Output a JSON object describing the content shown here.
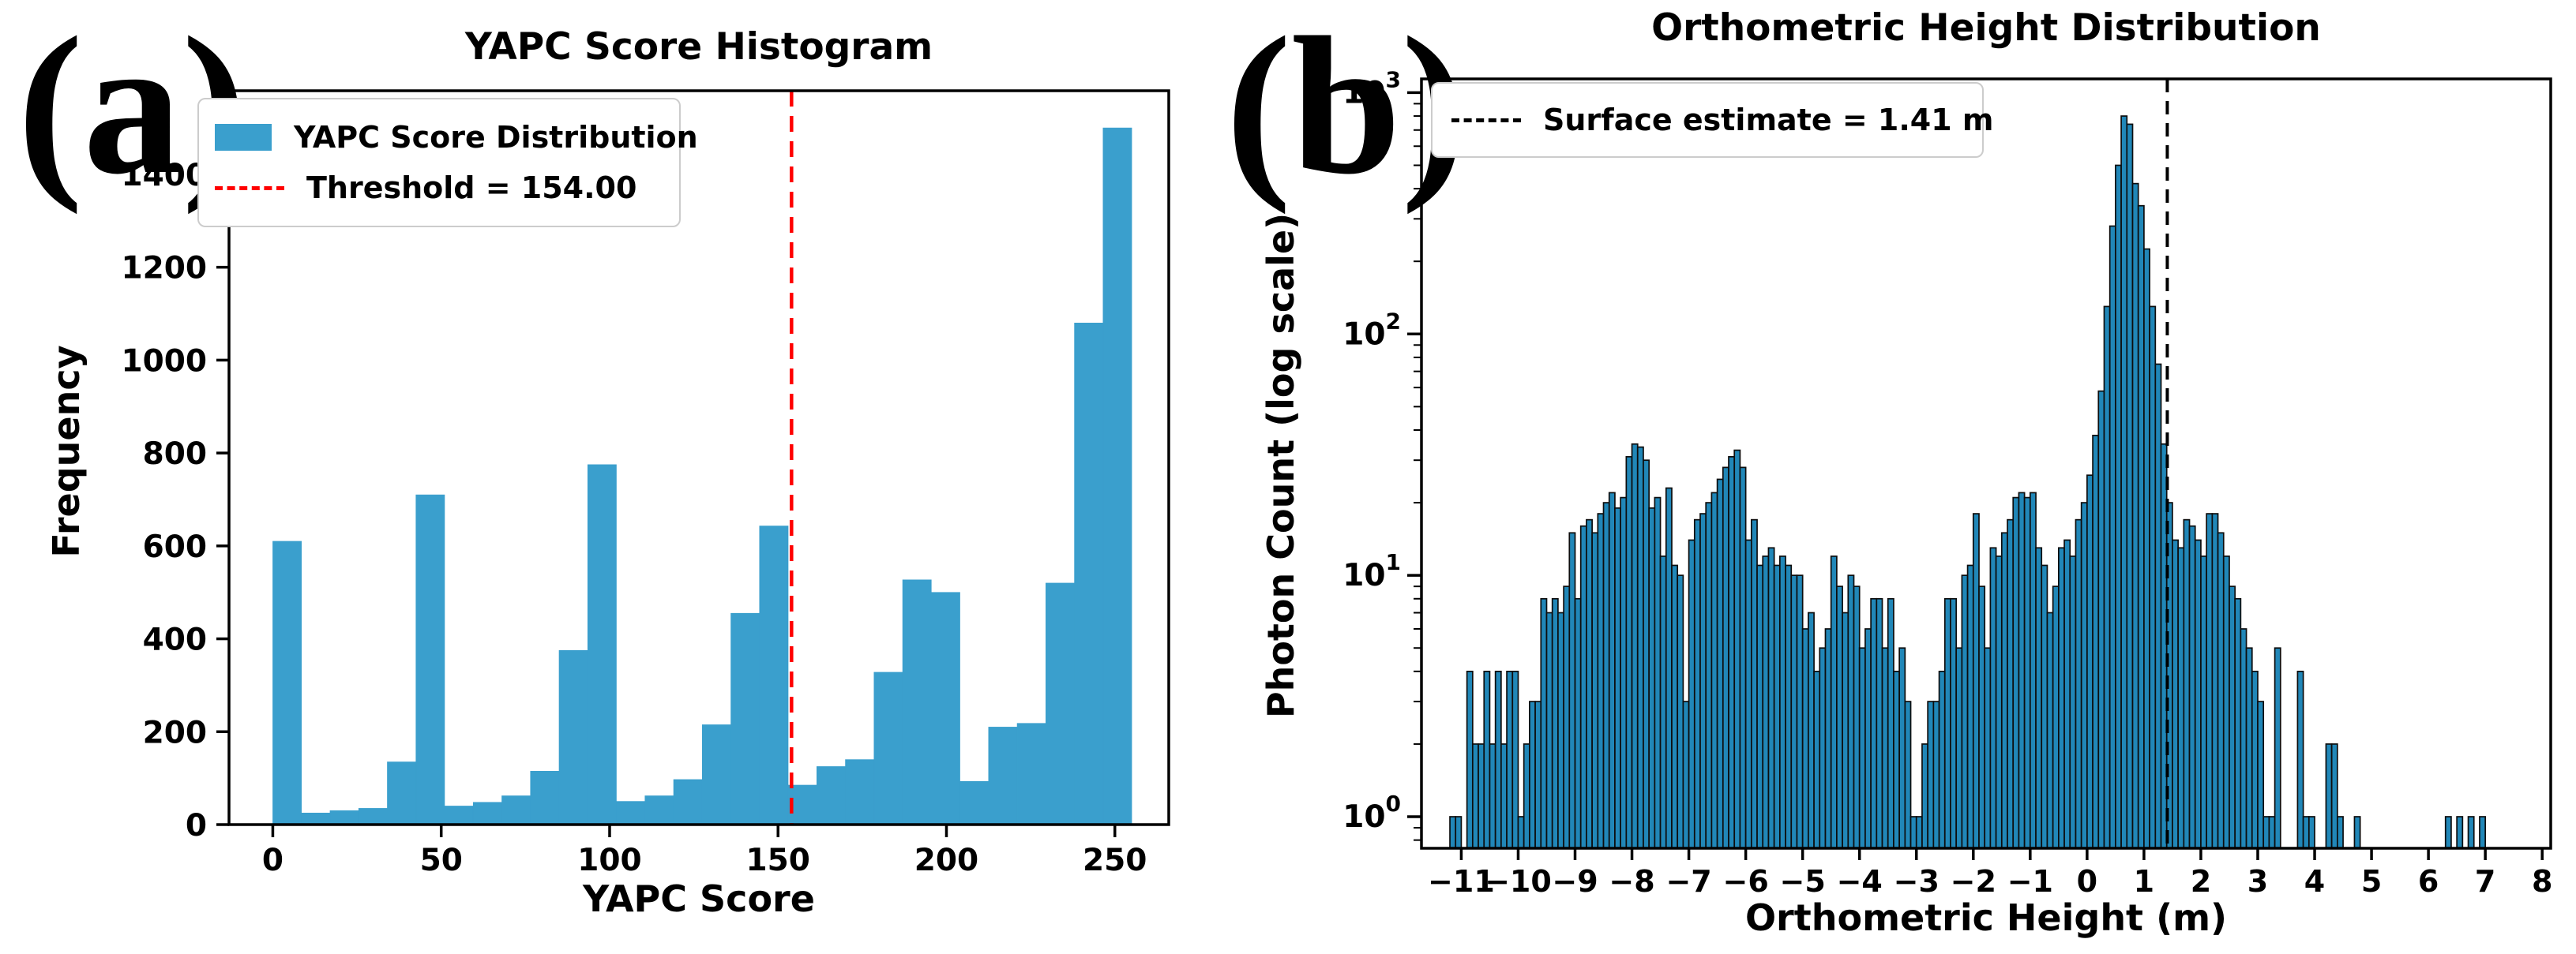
{
  "page": {
    "background": "#ffffff"
  },
  "panels": [
    {
      "id": "a",
      "corner_label": "(a)"
    },
    {
      "id": "b",
      "corner_label": "(b)"
    }
  ],
  "chart_data": [
    {
      "type": "bar",
      "panel": "a",
      "title": "YAPC Score Histogram",
      "xlabel": "YAPC Score",
      "ylabel": "Frequency",
      "bar_color": "#3a9fcd",
      "bin_start": 0,
      "bin_width": 8.5,
      "values": [
        610,
        25,
        30,
        35,
        135,
        710,
        40,
        48,
        62,
        115,
        375,
        775,
        50,
        62,
        97,
        215,
        455,
        643,
        85,
        125,
        140,
        328,
        527,
        500,
        93,
        210,
        218,
        520,
        1080,
        1500
      ],
      "threshold_line": {
        "x": 154,
        "color": "#ff0000",
        "style": "dashed"
      },
      "xlim": [
        -13,
        266
      ],
      "ylim": [
        0,
        1580
      ],
      "x_ticks": {
        "values": [
          0,
          50,
          100,
          150,
          200,
          250
        ],
        "labels": [
          "0",
          "50",
          "100",
          "150",
          "200",
          "250"
        ]
      },
      "y_ticks": {
        "values": [
          0,
          200,
          400,
          600,
          800,
          1000,
          1200,
          1400
        ],
        "labels": [
          "0",
          "200",
          "400",
          "600",
          "800",
          "1000",
          "1200",
          "1400"
        ]
      },
      "grid": false,
      "legend_position": "upper left",
      "legend": [
        {
          "type": "patch",
          "color": "#3a9fcd",
          "label": "YAPC Score Distribution"
        },
        {
          "type": "dashed-line",
          "color": "#ff0000",
          "label": "Threshold = 154.00"
        }
      ]
    },
    {
      "type": "bar",
      "panel": "b",
      "yscale": "log",
      "title": "Orthometric Height Distribution",
      "xlabel": "Orthometric Height (m)",
      "ylabel": "Photon Count (log scale)",
      "bar_color": "#2187b8",
      "bar_edge_color": "#0d0d0d",
      "bin_width": 0.1,
      "bins": [
        [
          -11.15,
          1
        ],
        [
          -11.05,
          1
        ],
        [
          -10.85,
          4
        ],
        [
          -10.75,
          2
        ],
        [
          -10.65,
          2
        ],
        [
          -10.55,
          4
        ],
        [
          -10.45,
          2
        ],
        [
          -10.35,
          4
        ],
        [
          -10.25,
          2
        ],
        [
          -10.15,
          4
        ],
        [
          -10.05,
          4
        ],
        [
          -9.95,
          1
        ],
        [
          -9.85,
          2
        ],
        [
          -9.75,
          3
        ],
        [
          -9.65,
          3
        ],
        [
          -9.55,
          8
        ],
        [
          -9.45,
          7
        ],
        [
          -9.35,
          8
        ],
        [
          -9.25,
          7
        ],
        [
          -9.15,
          9
        ],
        [
          -9.05,
          15
        ],
        [
          -8.95,
          8
        ],
        [
          -8.85,
          16
        ],
        [
          -8.75,
          17
        ],
        [
          -8.65,
          15
        ],
        [
          -8.55,
          18
        ],
        [
          -8.45,
          20
        ],
        [
          -8.35,
          22
        ],
        [
          -8.25,
          19
        ],
        [
          -8.15,
          21
        ],
        [
          -8.05,
          31
        ],
        [
          -7.95,
          35
        ],
        [
          -7.85,
          34
        ],
        [
          -7.75,
          30
        ],
        [
          -7.65,
          19
        ],
        [
          -7.55,
          21
        ],
        [
          -7.45,
          12
        ],
        [
          -7.35,
          23
        ],
        [
          -7.25,
          11
        ],
        [
          -7.15,
          10
        ],
        [
          -7.05,
          3
        ],
        [
          -6.95,
          14
        ],
        [
          -6.85,
          17
        ],
        [
          -6.75,
          18
        ],
        [
          -6.65,
          20
        ],
        [
          -6.55,
          22
        ],
        [
          -6.45,
          25
        ],
        [
          -6.35,
          28
        ],
        [
          -6.25,
          31
        ],
        [
          -6.15,
          33
        ],
        [
          -6.05,
          28
        ],
        [
          -5.95,
          14
        ],
        [
          -5.85,
          17
        ],
        [
          -5.75,
          11
        ],
        [
          -5.65,
          12
        ],
        [
          -5.55,
          13
        ],
        [
          -5.45,
          11
        ],
        [
          -5.35,
          12
        ],
        [
          -5.25,
          11
        ],
        [
          -5.15,
          10
        ],
        [
          -5.05,
          10
        ],
        [
          -4.95,
          6
        ],
        [
          -4.85,
          7
        ],
        [
          -4.75,
          4
        ],
        [
          -4.65,
          5
        ],
        [
          -4.55,
          6
        ],
        [
          -4.45,
          12
        ],
        [
          -4.35,
          9
        ],
        [
          -4.25,
          7
        ],
        [
          -4.15,
          10
        ],
        [
          -4.05,
          9
        ],
        [
          -3.95,
          5
        ],
        [
          -3.85,
          6
        ],
        [
          -3.75,
          8
        ],
        [
          -3.65,
          8
        ],
        [
          -3.55,
          5
        ],
        [
          -3.45,
          8
        ],
        [
          -3.35,
          4
        ],
        [
          -3.25,
          5
        ],
        [
          -3.15,
          3
        ],
        [
          -3.05,
          1
        ],
        [
          -2.95,
          1
        ],
        [
          -2.85,
          2
        ],
        [
          -2.75,
          3
        ],
        [
          -2.65,
          3
        ],
        [
          -2.55,
          4
        ],
        [
          -2.45,
          8
        ],
        [
          -2.35,
          8
        ],
        [
          -2.25,
          5
        ],
        [
          -2.15,
          10
        ],
        [
          -2.05,
          11
        ],
        [
          -1.95,
          18
        ],
        [
          -1.85,
          9
        ],
        [
          -1.75,
          5
        ],
        [
          -1.65,
          13
        ],
        [
          -1.55,
          12
        ],
        [
          -1.45,
          15
        ],
        [
          -1.35,
          17
        ],
        [
          -1.25,
          21
        ],
        [
          -1.15,
          22
        ],
        [
          -1.05,
          21
        ],
        [
          -0.95,
          22
        ],
        [
          -0.85,
          13
        ],
        [
          -0.75,
          11
        ],
        [
          -0.65,
          7
        ],
        [
          -0.55,
          9
        ],
        [
          -0.45,
          13
        ],
        [
          -0.35,
          14
        ],
        [
          -0.25,
          12
        ],
        [
          -0.15,
          17
        ],
        [
          -0.05,
          20
        ],
        [
          0.05,
          26
        ],
        [
          0.15,
          38
        ],
        [
          0.25,
          58
        ],
        [
          0.35,
          130
        ],
        [
          0.45,
          280
        ],
        [
          0.55,
          500
        ],
        [
          0.65,
          800
        ],
        [
          0.75,
          740
        ],
        [
          0.85,
          420
        ],
        [
          0.95,
          340
        ],
        [
          1.05,
          225
        ],
        [
          1.15,
          130
        ],
        [
          1.25,
          75
        ],
        [
          1.35,
          35
        ],
        [
          1.45,
          20
        ],
        [
          1.55,
          14
        ],
        [
          1.65,
          13
        ],
        [
          1.75,
          17
        ],
        [
          1.85,
          16
        ],
        [
          1.95,
          14
        ],
        [
          2.05,
          12
        ],
        [
          2.15,
          18
        ],
        [
          2.25,
          18
        ],
        [
          2.35,
          15
        ],
        [
          2.45,
          12
        ],
        [
          2.55,
          9
        ],
        [
          2.65,
          8
        ],
        [
          2.75,
          6
        ],
        [
          2.85,
          5
        ],
        [
          2.95,
          4
        ],
        [
          3.05,
          3
        ],
        [
          3.15,
          1
        ],
        [
          3.25,
          1
        ],
        [
          3.35,
          5
        ],
        [
          3.75,
          4
        ],
        [
          3.85,
          1
        ],
        [
          3.95,
          1
        ],
        [
          4.25,
          2
        ],
        [
          4.35,
          2
        ],
        [
          4.45,
          1
        ],
        [
          4.75,
          1
        ],
        [
          6.35,
          1
        ],
        [
          6.55,
          1
        ],
        [
          6.75,
          1
        ],
        [
          6.95,
          1
        ]
      ],
      "surface_line": {
        "x": 1.41,
        "color": "#000000",
        "style": "dashed"
      },
      "xlim": [
        -11.7,
        8.15
      ],
      "ylim": [
        0.74,
        1140
      ],
      "x_ticks": {
        "values": [
          -11,
          -10,
          -9,
          -8,
          -7,
          -6,
          -5,
          -4,
          -3,
          -2,
          -1,
          0,
          1,
          2,
          3,
          4,
          5,
          6,
          7,
          8
        ],
        "labels": [
          "−11",
          "−10",
          "−9",
          "−8",
          "−7",
          "−6",
          "−5",
          "−4",
          "−3",
          "−2",
          "−1",
          "0",
          "1",
          "2",
          "3",
          "4",
          "5",
          "6",
          "7",
          "8"
        ]
      },
      "y_tick_base": "10",
      "y_ticks": {
        "values": [
          1,
          10,
          100,
          1000
        ],
        "exponents": [
          "0",
          "1",
          "2",
          "3"
        ]
      },
      "grid": false,
      "legend_position": "upper left",
      "legend": [
        {
          "type": "dashed-line",
          "color": "#000000",
          "label": "Surface estimate = 1.41 m"
        }
      ]
    }
  ]
}
